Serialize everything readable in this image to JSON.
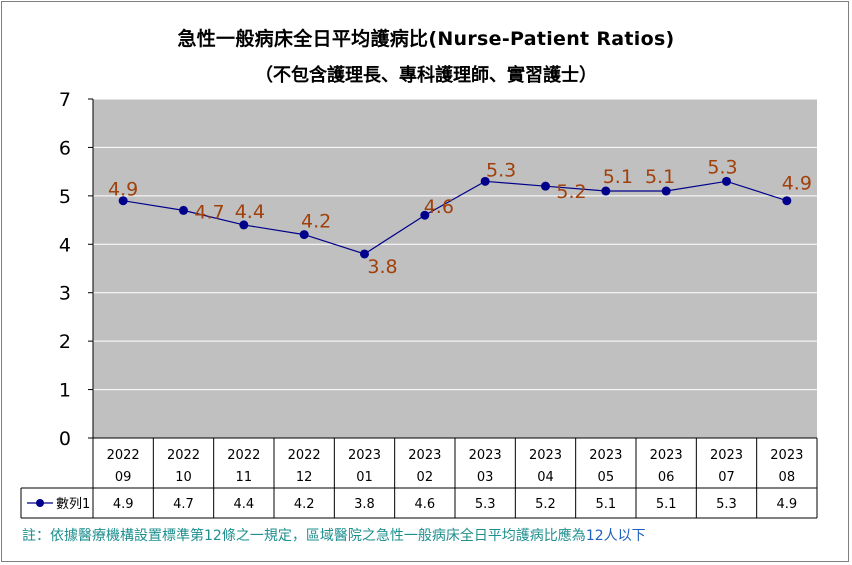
{
  "title": "急性一般病床全日平均護病比(Nurse-Patient Ratios)",
  "subtitle": "（不包含護理長、專科護理師、實習護士）",
  "chart_data": {
    "type": "line",
    "categories": [
      [
        "2022",
        "09"
      ],
      [
        "2022",
        "10"
      ],
      [
        "2022",
        "11"
      ],
      [
        "2022",
        "12"
      ],
      [
        "2023",
        "01"
      ],
      [
        "2023",
        "02"
      ],
      [
        "2023",
        "03"
      ],
      [
        "2023",
        "04"
      ],
      [
        "2023",
        "05"
      ],
      [
        "2023",
        "06"
      ],
      [
        "2023",
        "07"
      ],
      [
        "2023",
        "08"
      ]
    ],
    "series": [
      {
        "name": "數列1",
        "values": [
          4.9,
          4.7,
          4.4,
          4.2,
          3.8,
          4.6,
          5.3,
          5.2,
          5.1,
          5.1,
          5.3,
          4.9
        ]
      }
    ],
    "value_labels": [
      "4.9",
      "4.7",
      "4.4",
      "4.2",
      "3.8",
      "4.6",
      "5.3",
      "5.2",
      "5.1",
      "5.1",
      "5.3",
      "4.9"
    ],
    "yticks": [
      "0",
      "1",
      "2",
      "3",
      "4",
      "5",
      "6",
      "7"
    ],
    "ylim": [
      0,
      7
    ],
    "grid": true,
    "legend": "data-table",
    "colors": {
      "plot_bg": "#c0c0c0",
      "line": "#00008b",
      "label": "#a0400a",
      "grid": "#ffffff"
    }
  },
  "note": {
    "prefix": "註：依據醫療機構設置標準第12條之一規定，區域醫院之急性一般病床全日平均護病比應為",
    "highlight": "12人以下"
  }
}
